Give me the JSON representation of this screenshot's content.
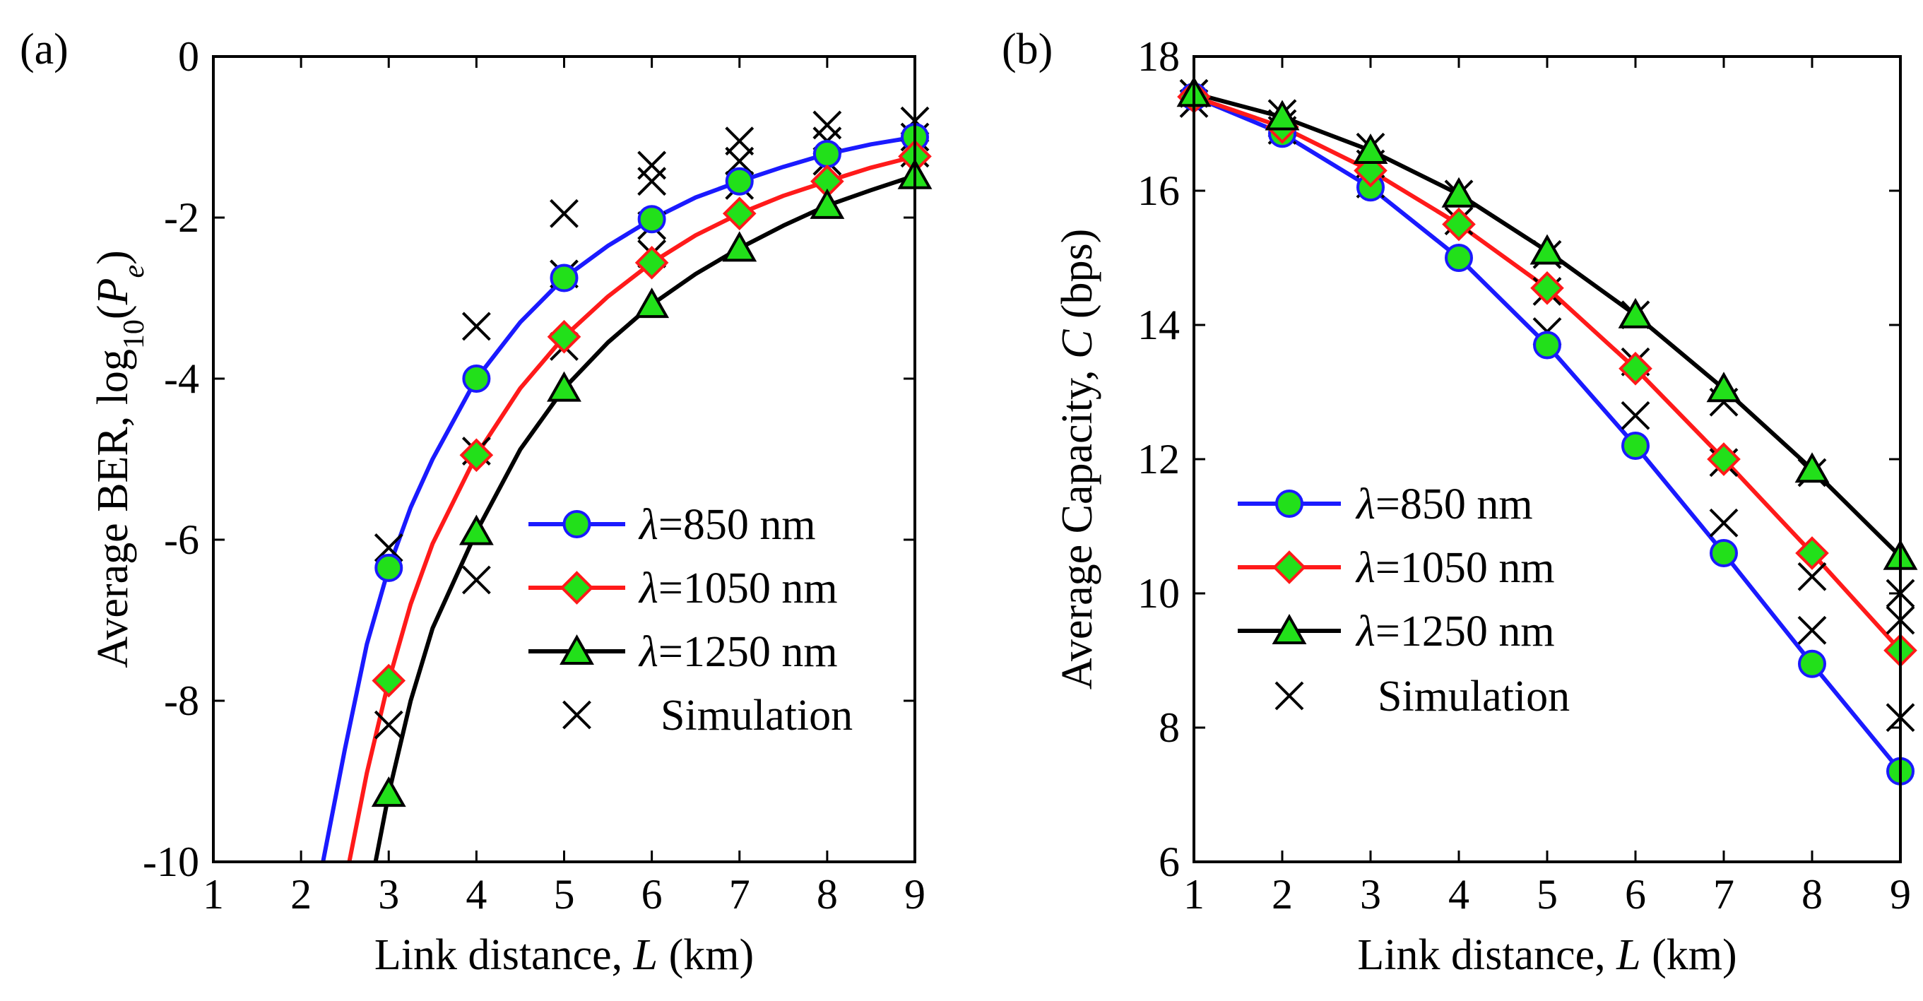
{
  "figure": {
    "legend_labels": {
      "wavelength_symbol": "λ",
      "unit": "nm",
      "simulation": "Simulation"
    }
  },
  "colors": {
    "series_850": "#1a1aff",
    "series_1050": "#ff1a1a",
    "series_1250": "#000000",
    "marker_fill": "#22e01a",
    "simulation_marker": "#000000"
  },
  "chart_data": [
    {
      "panel_label": "(a)",
      "type": "line",
      "title": "",
      "xlabel": {
        "prefix": "Link distance, ",
        "var": "L",
        "suffix": " (km)"
      },
      "ylabel": {
        "prefix": "Average BER, log",
        "sub": "10",
        "mid": "(",
        "var": "P",
        "var_sub": "e",
        "suffix": ")"
      },
      "xlim": [
        1,
        9
      ],
      "ylim": [
        -10,
        0
      ],
      "xticks": [
        1,
        2,
        3,
        4,
        5,
        6,
        7,
        8,
        9
      ],
      "yticks": [
        -10,
        -8,
        -6,
        -4,
        -2,
        0
      ],
      "ytick_labels": [
        "-10",
        "-8",
        "-6",
        "-4",
        "-2",
        "0"
      ],
      "xtick_labels": [
        "1",
        "2",
        "3",
        "4",
        "5",
        "6",
        "7",
        "8",
        "9"
      ],
      "legend_position": "center-right",
      "series": [
        {
          "name": "850",
          "marker": "circle",
          "color_key": "series_850",
          "curve_x": [
            2.25,
            2.5,
            2.75,
            3,
            3.25,
            3.5,
            4,
            4.5,
            5,
            5.5,
            6,
            6.5,
            7,
            7.5,
            8,
            8.5,
            9
          ],
          "curve_y": [
            -10,
            -8.6,
            -7.3,
            -6.35,
            -5.6,
            -5.0,
            -4.0,
            -3.3,
            -2.75,
            -2.35,
            -2.02,
            -1.75,
            -1.55,
            -1.37,
            -1.21,
            -1.09,
            -1.0
          ],
          "marker_x": [
            3,
            4,
            5,
            6,
            7,
            8,
            9
          ],
          "marker_y": [
            -6.35,
            -4.0,
            -2.75,
            -2.02,
            -1.55,
            -1.21,
            -1.0
          ]
        },
        {
          "name": "1050",
          "marker": "diamond",
          "color_key": "series_1050",
          "curve_x": [
            2.55,
            2.75,
            3,
            3.25,
            3.5,
            4,
            4.5,
            5,
            5.5,
            6,
            6.5,
            7,
            7.5,
            8,
            8.5,
            9
          ],
          "curve_y": [
            -10,
            -8.9,
            -7.75,
            -6.8,
            -6.05,
            -4.95,
            -4.12,
            -3.48,
            -2.98,
            -2.56,
            -2.22,
            -1.95,
            -1.73,
            -1.55,
            -1.38,
            -1.24
          ],
          "marker_x": [
            3,
            4,
            5,
            6,
            7,
            8,
            9
          ],
          "marker_y": [
            -7.75,
            -4.95,
            -3.48,
            -2.56,
            -1.95,
            -1.55,
            -1.24
          ]
        },
        {
          "name": "1250",
          "marker": "triangle",
          "color_key": "series_1250",
          "curve_x": [
            2.85,
            3,
            3.25,
            3.5,
            4,
            4.5,
            5,
            5.5,
            6,
            6.5,
            7,
            7.5,
            8,
            8.5,
            9
          ],
          "curve_y": [
            -10,
            -9.15,
            -8.0,
            -7.1,
            -5.9,
            -4.88,
            -4.12,
            -3.55,
            -3.08,
            -2.7,
            -2.38,
            -2.1,
            -1.85,
            -1.66,
            -1.48
          ],
          "marker_x": [
            3,
            4,
            5,
            6,
            7,
            8,
            9
          ],
          "marker_y": [
            -9.15,
            -5.9,
            -4.12,
            -3.08,
            -2.38,
            -1.85,
            -1.48
          ]
        }
      ],
      "simulation": {
        "x": [
          3,
          3,
          4,
          4,
          4,
          5,
          5,
          5,
          6,
          6,
          6,
          6,
          7,
          7,
          7,
          8,
          8,
          8,
          9,
          9,
          9
        ],
        "y": [
          -6.1,
          -8.3,
          -3.35,
          -4.9,
          -6.5,
          -1.95,
          -2.7,
          -3.6,
          -1.35,
          -1.55,
          -2.1,
          -2.45,
          -1.05,
          -1.3,
          -1.6,
          -0.85,
          -1.05,
          -1.3,
          -0.8,
          -1.0,
          -1.2
        ]
      }
    },
    {
      "panel_label": "(b)",
      "type": "line",
      "title": "",
      "xlabel": {
        "prefix": "Link distance, ",
        "var": "L",
        "suffix": " (km)"
      },
      "ylabel": {
        "prefix": "Average Capacity, ",
        "var": "C",
        "suffix": " (bps)"
      },
      "xlim": [
        1,
        9
      ],
      "ylim": [
        6,
        18
      ],
      "xticks": [
        1,
        2,
        3,
        4,
        5,
        6,
        7,
        8,
        9
      ],
      "yticks": [
        6,
        8,
        10,
        12,
        14,
        16,
        18
      ],
      "ytick_labels": [
        "6",
        "8",
        "10",
        "12",
        "14",
        "16",
        "18"
      ],
      "xtick_labels": [
        "1",
        "2",
        "3",
        "4",
        "5",
        "6",
        "7",
        "8",
        "9"
      ],
      "legend_position": "lower-left",
      "series": [
        {
          "name": "850",
          "marker": "circle",
          "color_key": "series_850",
          "curve_x": [
            1,
            2,
            3,
            4,
            5,
            6,
            7,
            8,
            9
          ],
          "curve_y": [
            17.4,
            16.85,
            16.05,
            15.0,
            13.7,
            12.2,
            10.6,
            8.95,
            7.35
          ],
          "marker_x": [
            1,
            2,
            3,
            4,
            5,
            6,
            7,
            8,
            9
          ],
          "marker_y": [
            17.4,
            16.85,
            16.05,
            15.0,
            13.7,
            12.2,
            10.6,
            8.95,
            7.35
          ]
        },
        {
          "name": "1050",
          "marker": "diamond",
          "color_key": "series_1050",
          "curve_x": [
            1,
            2,
            3,
            4,
            5,
            6,
            7,
            8,
            9
          ],
          "curve_y": [
            17.4,
            16.95,
            16.3,
            15.5,
            14.55,
            13.35,
            12.0,
            10.6,
            9.15
          ],
          "marker_x": [
            1,
            2,
            3,
            4,
            5,
            6,
            7,
            8,
            9
          ],
          "marker_y": [
            17.4,
            16.95,
            16.3,
            15.5,
            14.55,
            13.35,
            12.0,
            10.6,
            9.15
          ]
        },
        {
          "name": "1250",
          "marker": "triangle",
          "color_key": "series_1250",
          "curve_x": [
            1,
            2,
            3,
            4,
            5,
            6,
            7,
            8,
            9
          ],
          "curve_y": [
            17.45,
            17.1,
            16.6,
            15.95,
            15.1,
            14.15,
            13.05,
            11.85,
            10.55
          ],
          "marker_x": [
            1,
            2,
            3,
            4,
            5,
            6,
            7,
            8,
            9
          ],
          "marker_y": [
            17.45,
            17.1,
            16.6,
            15.95,
            15.1,
            14.15,
            13.05,
            11.85,
            10.55
          ]
        }
      ],
      "simulation": {
        "x": [
          1,
          1,
          2,
          2,
          2,
          3,
          3,
          3,
          4,
          4,
          5,
          5,
          5,
          6,
          6,
          6,
          7,
          7,
          7,
          8,
          8,
          8,
          9,
          9,
          9
        ],
        "y": [
          17.3,
          17.45,
          16.9,
          17.0,
          17.15,
          16.1,
          16.4,
          16.65,
          15.55,
          15.95,
          13.9,
          14.5,
          15.05,
          12.65,
          13.45,
          14.15,
          11.05,
          11.95,
          12.85,
          9.45,
          10.25,
          11.8,
          8.15,
          9.6,
          10.0
        ]
      }
    }
  ]
}
